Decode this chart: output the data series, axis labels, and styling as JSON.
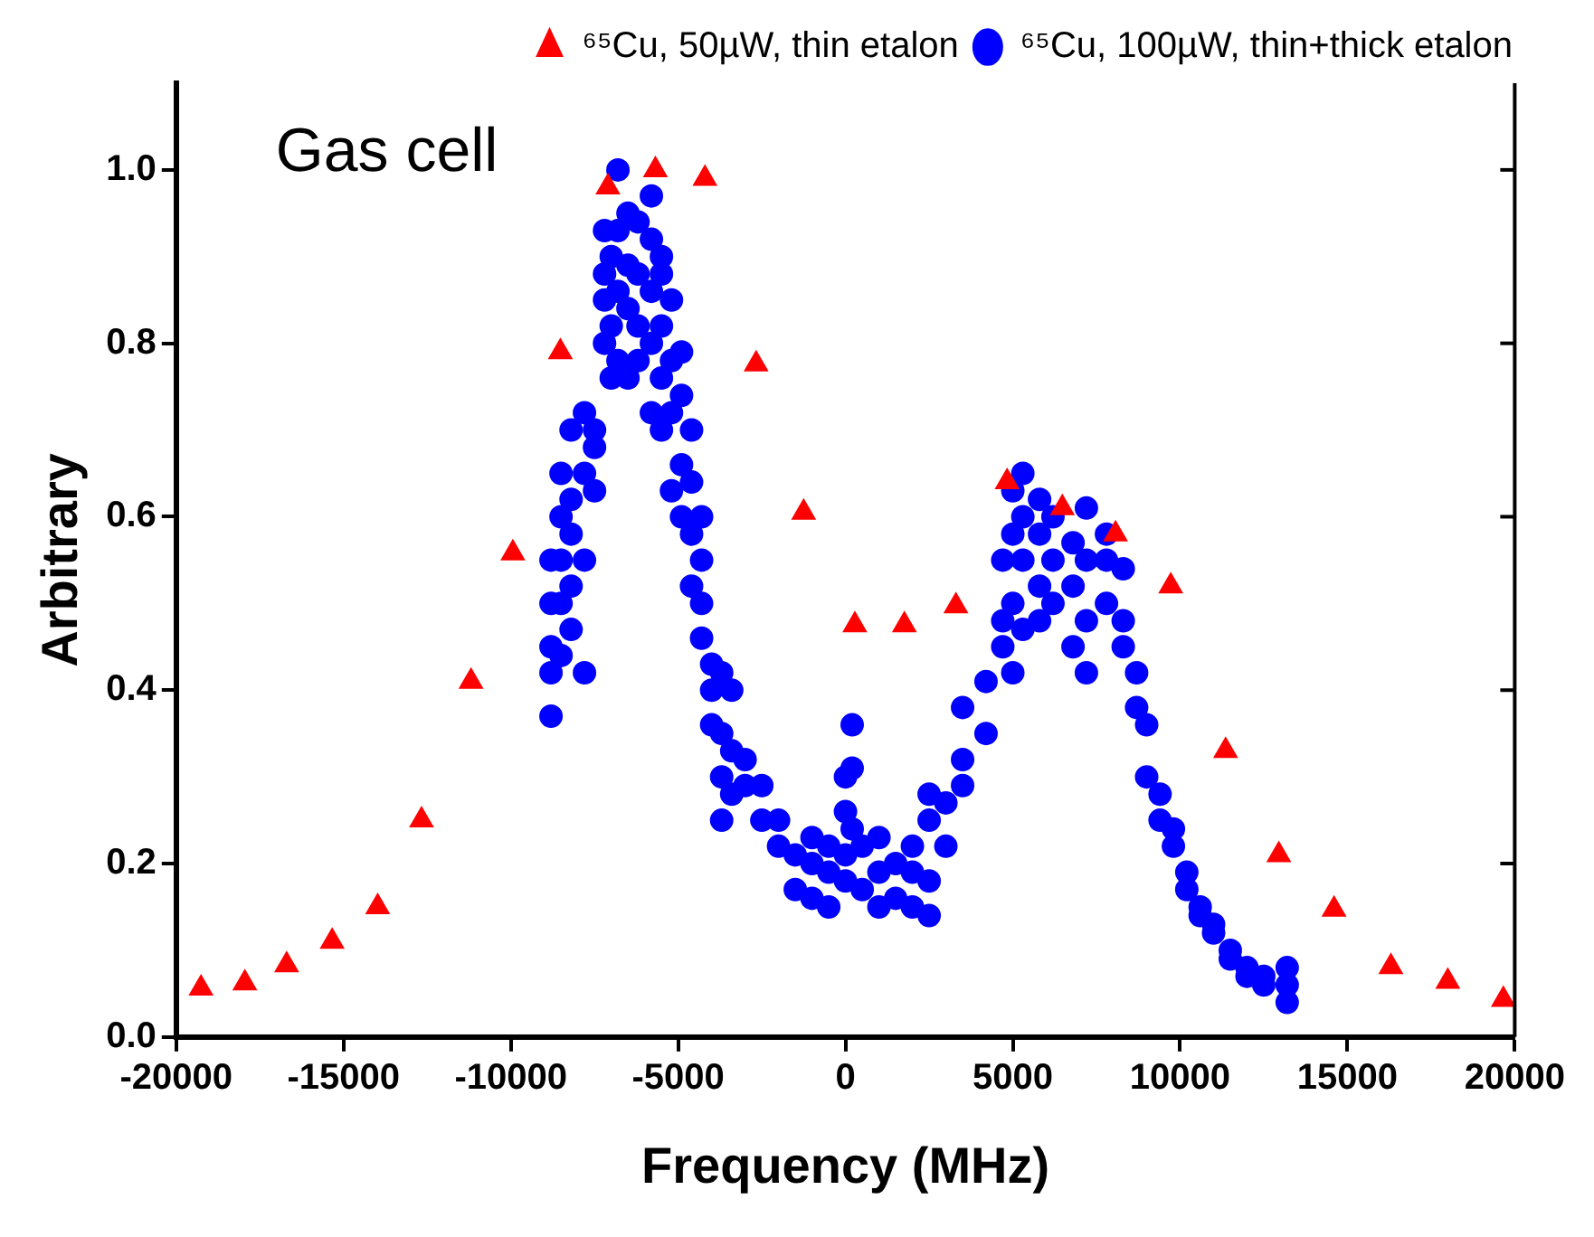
{
  "chart_data": {
    "type": "scatter",
    "xlabel": "Frequency (MHz)",
    "ylabel": "Arbitrary",
    "annotations": [
      "Gas cell"
    ],
    "xlim": [
      -20000,
      20000
    ],
    "xticks": [
      -20000,
      -15000,
      -10000,
      -5000,
      0,
      5000,
      10000,
      15000,
      20000
    ],
    "ylim": [
      0,
      1.1
    ],
    "yticks": [
      {
        "value": 0,
        "label": "0.0"
      },
      {
        "value": 0.2,
        "label": "0.2"
      },
      {
        "value": 0.4,
        "label": "0.4"
      },
      {
        "value": 0.6,
        "label": "0.6"
      },
      {
        "value": 0.8,
        "label": "0.8"
      },
      {
        "value": 1,
        "label": "1.0"
      }
    ],
    "grid": false,
    "legend": "top right",
    "series": [
      {
        "name": "⁶⁵Cu, 50µW, thin etalon",
        "color": "#ff0000",
        "marker": "triangle",
        "x": [
          -19260,
          -17950,
          -16700,
          -15340,
          -13980,
          -12670,
          -11190,
          -9940,
          -8520,
          -7100,
          -5680,
          -4200,
          -2670,
          -1250,
          280,
          1760,
          3300,
          4830,
          6480,
          8070,
          9720,
          11360,
          12950,
          14600,
          16300,
          18000,
          19660
        ],
        "values": [
          0.056,
          0.062,
          0.083,
          0.11,
          0.15,
          0.25,
          0.41,
          0.558,
          0.79,
          0.98,
          1.0,
          0.99,
          0.776,
          0.605,
          0.475,
          0.475,
          0.497,
          0.64,
          0.61,
          0.58,
          0.52,
          0.33,
          0.21,
          0.147,
          0.081,
          0.064,
          0.043
        ]
      },
      {
        "name": "⁶⁵Cu, 100µW, thin+thick etalon",
        "color": "#0000ff",
        "marker": "circle",
        "x": [
          -8800,
          -8800,
          -8800,
          -8800,
          -8800,
          -8500,
          -8500,
          -8500,
          -8500,
          -8500,
          -8200,
          -8200,
          -8200,
          -8200,
          -8200,
          -7800,
          -7800,
          -7800,
          -7800,
          -7500,
          -7500,
          -7500,
          -7200,
          -7200,
          -7200,
          -7200,
          -7000,
          -7000,
          -7000,
          -6800,
          -6800,
          -6800,
          -6800,
          -6500,
          -6500,
          -6500,
          -6500,
          -6200,
          -6200,
          -6200,
          -6200,
          -5800,
          -5800,
          -5800,
          -5800,
          -5800,
          -5500,
          -5500,
          -5500,
          -5500,
          -5500,
          -5200,
          -5200,
          -5200,
          -5200,
          -4900,
          -4900,
          -4900,
          -4900,
          -4600,
          -4600,
          -4600,
          -4600,
          -4300,
          -4300,
          -4300,
          -4300,
          -4000,
          -4000,
          -4000,
          -3700,
          -3700,
          -3700,
          -3700,
          -3400,
          -3400,
          -3400,
          -3000,
          -3000,
          -2500,
          -2500,
          -2000,
          -2000,
          -1500,
          -1500,
          -1000,
          -1000,
          -1000,
          -500,
          -500,
          -500,
          0,
          0,
          0,
          0,
          200,
          200,
          200,
          500,
          500,
          1000,
          1000,
          1000,
          1500,
          1500,
          2000,
          2000,
          2000,
          2500,
          2500,
          2500,
          2500,
          3000,
          3000,
          3500,
          3500,
          3500,
          4200,
          4200,
          4700,
          4700,
          4700,
          5000,
          5000,
          5000,
          5000,
          5300,
          5300,
          5300,
          5300,
          5800,
          5800,
          5800,
          5800,
          6200,
          6200,
          6200,
          6800,
          6800,
          6800,
          7200,
          7200,
          7200,
          7200,
          7800,
          7800,
          7800,
          8300,
          8300,
          8300,
          8700,
          8700,
          9000,
          9000,
          9400,
          9400,
          9800,
          9800,
          10200,
          10200,
          10600,
          10600,
          11000,
          11000,
          11500,
          11500,
          12000,
          12000,
          12500,
          12500,
          13200,
          13200,
          13200
        ],
        "values": [
          0.37,
          0.42,
          0.45,
          0.5,
          0.55,
          0.44,
          0.5,
          0.55,
          0.6,
          0.65,
          0.47,
          0.52,
          0.58,
          0.62,
          0.7,
          0.42,
          0.55,
          0.65,
          0.72,
          0.63,
          0.68,
          0.7,
          0.8,
          0.85,
          0.88,
          0.93,
          0.76,
          0.82,
          0.9,
          1.0,
          0.78,
          0.86,
          0.93,
          0.76,
          0.84,
          0.95,
          0.89,
          0.78,
          0.82,
          0.88,
          0.94,
          0.97,
          0.72,
          0.8,
          0.86,
          0.92,
          0.7,
          0.76,
          0.82,
          0.88,
          0.9,
          0.63,
          0.72,
          0.78,
          0.85,
          0.6,
          0.66,
          0.74,
          0.79,
          0.52,
          0.58,
          0.64,
          0.7,
          0.46,
          0.5,
          0.55,
          0.6,
          0.43,
          0.4,
          0.36,
          0.35,
          0.3,
          0.25,
          0.42,
          0.28,
          0.33,
          0.4,
          0.29,
          0.32,
          0.25,
          0.29,
          0.22,
          0.25,
          0.17,
          0.21,
          0.16,
          0.2,
          0.23,
          0.15,
          0.19,
          0.22,
          0.18,
          0.21,
          0.26,
          0.3,
          0.31,
          0.36,
          0.24,
          0.17,
          0.22,
          0.15,
          0.19,
          0.23,
          0.16,
          0.2,
          0.15,
          0.19,
          0.22,
          0.14,
          0.18,
          0.25,
          0.28,
          0.22,
          0.27,
          0.29,
          0.32,
          0.38,
          0.35,
          0.41,
          0.45,
          0.48,
          0.55,
          0.42,
          0.5,
          0.58,
          0.63,
          0.47,
          0.55,
          0.6,
          0.65,
          0.48,
          0.52,
          0.58,
          0.62,
          0.5,
          0.55,
          0.6,
          0.45,
          0.52,
          0.57,
          0.42,
          0.48,
          0.55,
          0.61,
          0.5,
          0.55,
          0.58,
          0.45,
          0.48,
          0.54,
          0.42,
          0.38,
          0.36,
          0.3,
          0.25,
          0.28,
          0.22,
          0.24,
          0.19,
          0.17,
          0.15,
          0.14,
          0.13,
          0.12,
          0.1,
          0.09,
          0.08,
          0.07,
          0.07,
          0.06,
          0.04,
          0.06,
          0.08
        ]
      }
    ]
  }
}
